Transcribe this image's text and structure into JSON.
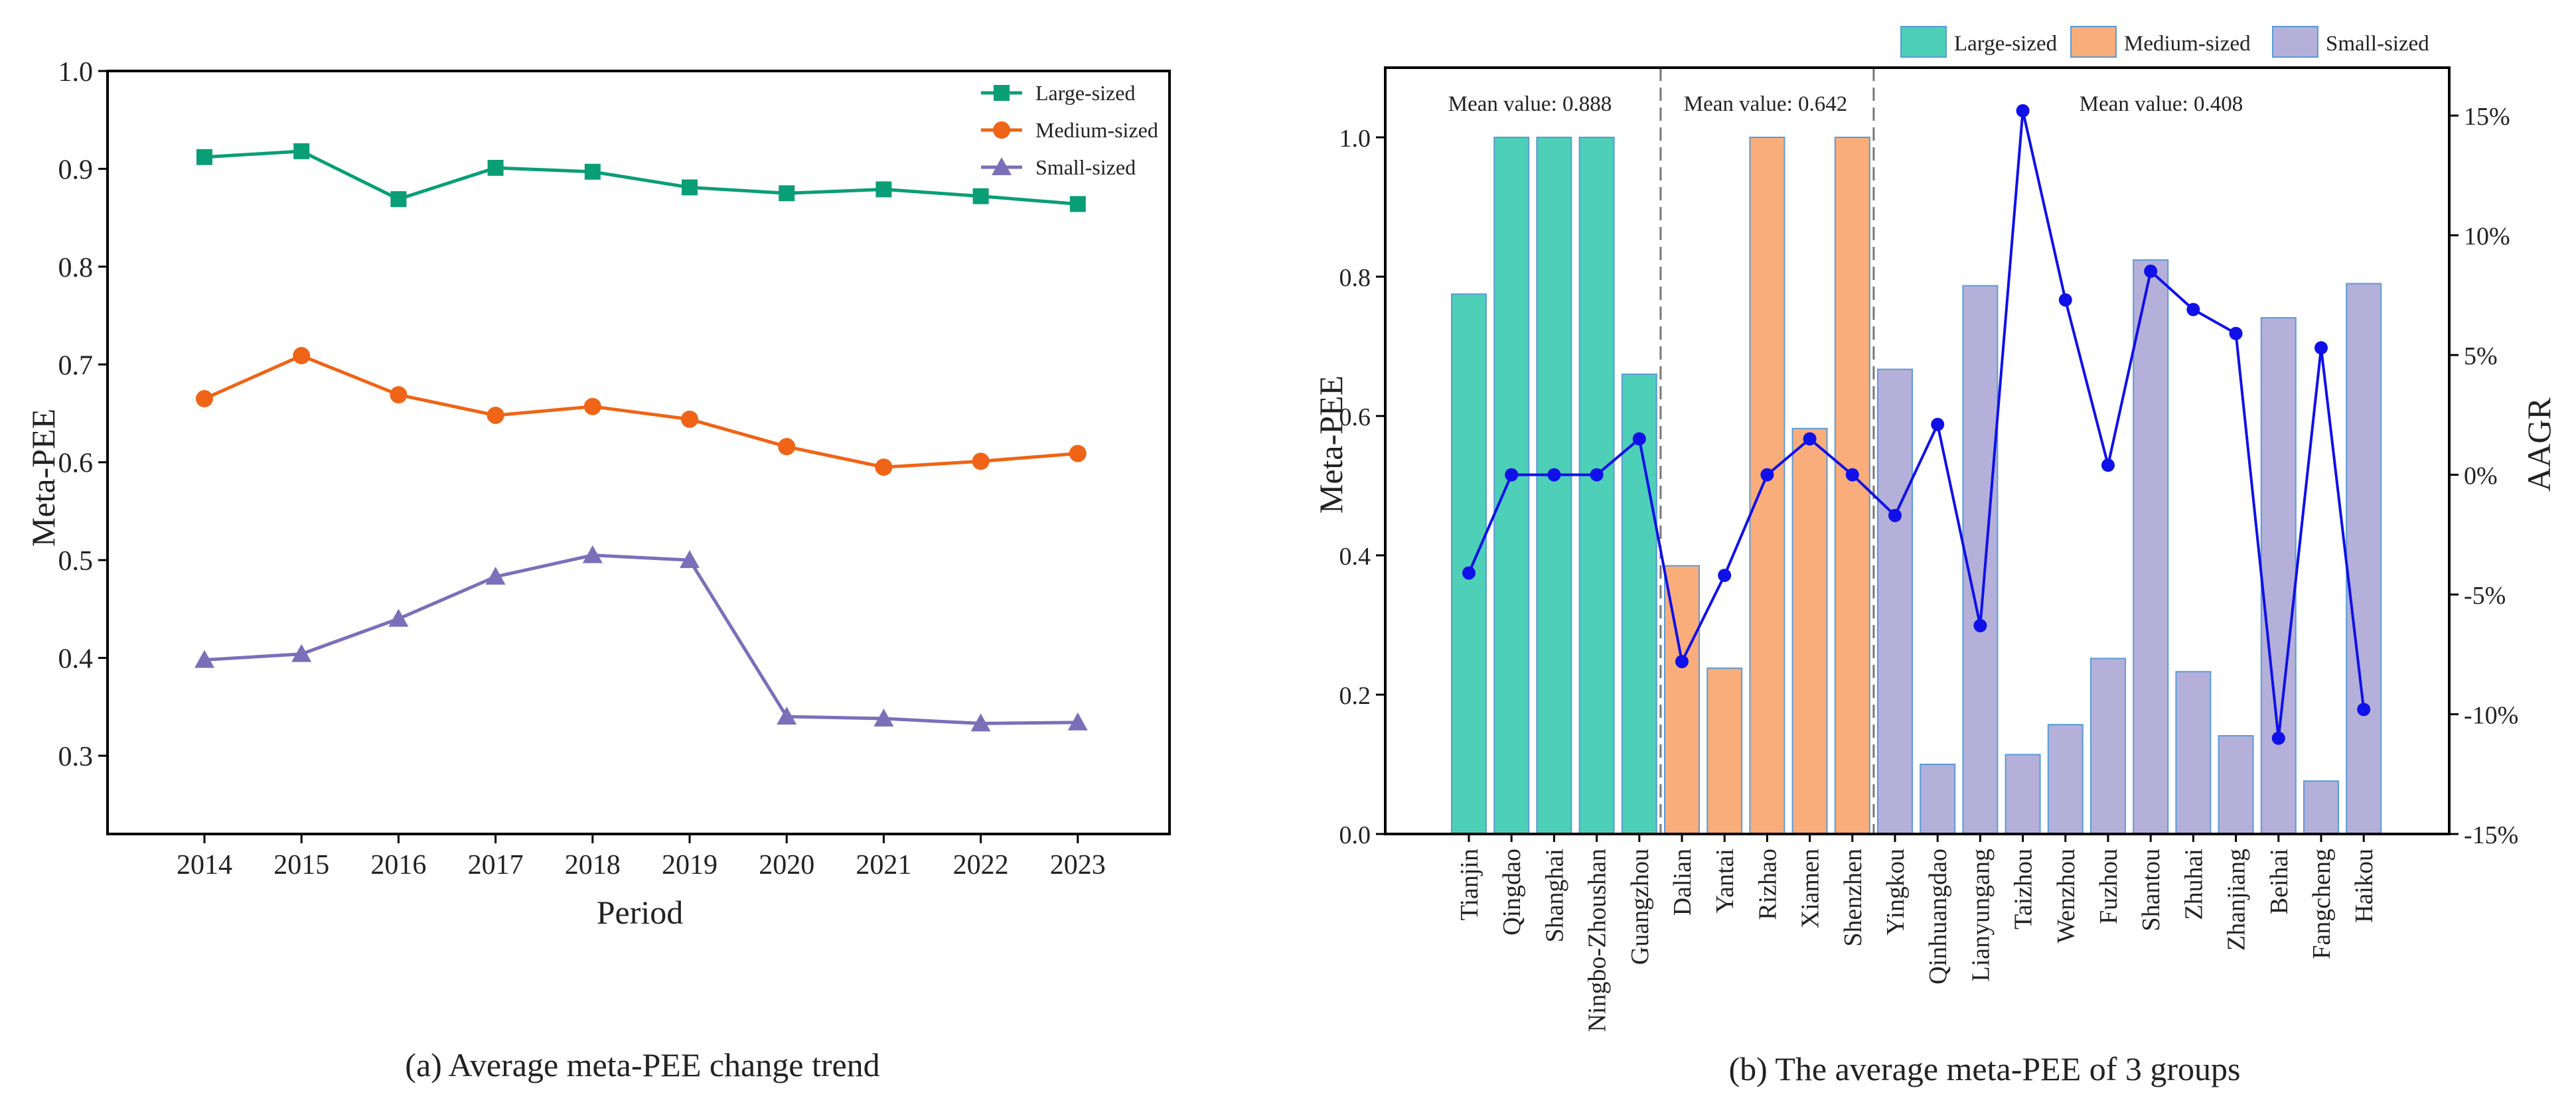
{
  "colors": {
    "large": "#0a9e76",
    "large_bar": "#4ecfb7",
    "medium": "#ef6416",
    "medium_bar": "#f8ad7b",
    "small": "#7b6fba",
    "small_bar": "#b4b0d9",
    "bar_edge": "#5b9bd5",
    "aagr": "#1010e8",
    "axis": "#000000",
    "divider": "#777777"
  },
  "chart_data": [
    {
      "type": "line",
      "title": "",
      "caption": "(a) Average meta-PEE change trend",
      "xlabel": "Period",
      "ylabel": "Meta-PEE",
      "x": [
        "2014",
        "2015",
        "2016",
        "2017",
        "2018",
        "2019",
        "2020",
        "2021",
        "2022",
        "2023"
      ],
      "ylim": [
        0.22,
        1.0
      ],
      "yticks": [
        "0.3",
        "0.4",
        "0.5",
        "0.6",
        "0.7",
        "0.8",
        "0.9",
        "1.0"
      ],
      "legend_position": "top-right",
      "series": [
        {
          "name": "Large-sized",
          "marker": "square",
          "values": [
            0.912,
            0.918,
            0.869,
            0.901,
            0.897,
            0.881,
            0.875,
            0.879,
            0.872,
            0.864
          ]
        },
        {
          "name": "Medium-sized",
          "marker": "circle",
          "values": [
            0.665,
            0.709,
            0.669,
            0.648,
            0.657,
            0.644,
            0.616,
            0.595,
            0.601,
            0.609
          ]
        },
        {
          "name": "Small-sized",
          "marker": "triangle",
          "values": [
            0.398,
            0.404,
            0.44,
            0.483,
            0.505,
            0.5,
            0.34,
            0.338,
            0.333,
            0.334
          ]
        }
      ]
    },
    {
      "type": "bar",
      "title": "",
      "caption": "(b) The average meta-PEE of 3 groups",
      "xlabel": "",
      "ylabel": "Meta-PEE",
      "y2label": "AAGR",
      "ylim": [
        0.0,
        1.1
      ],
      "yticks": [
        "0.0",
        "0.2",
        "0.4",
        "0.6",
        "0.8",
        "1.0"
      ],
      "y2lim": [
        -15,
        17
      ],
      "y2ticks": [
        "-15%",
        "-10%",
        "-5%",
        "0%",
        "5%",
        "10%",
        "15%"
      ],
      "legend": [
        "Large-sized",
        "Medium-sized",
        "Small-sized"
      ],
      "legend_position": "top",
      "categories": [
        "Tianjin",
        "Qingdao",
        "Shanghai",
        "Ningbo-Zhoushan",
        "Guangzhou",
        "Dalian",
        "Yantai",
        "Rizhao",
        "Xiamen",
        "Shenzhen",
        "Yingkou",
        "Qinhuangdao",
        "Lianyungang",
        "Taizhou",
        "Wenzhou",
        "Fuzhou",
        "Shantou",
        "Zhuhai",
        "Zhanjiang",
        "Beihai",
        "Fangcheng",
        "Haikou"
      ],
      "groups": [
        "large",
        "large",
        "large",
        "large",
        "large",
        "medium",
        "medium",
        "medium",
        "medium",
        "medium",
        "small",
        "small",
        "small",
        "small",
        "small",
        "small",
        "small",
        "small",
        "small",
        "small",
        "small",
        "small"
      ],
      "values": [
        0.775,
        1.0,
        1.0,
        1.0,
        0.66,
        0.385,
        0.238,
        1.0,
        0.582,
        1.0,
        0.667,
        0.1,
        0.787,
        0.114,
        0.157,
        0.252,
        0.824,
        0.233,
        0.141,
        0.741,
        0.076,
        0.79
      ],
      "aagr_series": {
        "name": "AAGR",
        "values": [
          -4.1,
          0.0,
          0.0,
          0.0,
          1.5,
          -7.8,
          -4.2,
          0.0,
          1.5,
          0.0,
          -1.7,
          2.1,
          -6.3,
          15.2,
          7.3,
          0.4,
          8.5,
          6.9,
          5.9,
          -11.0,
          5.3,
          -9.8
        ]
      },
      "annotations": [
        "Mean value: 0.888",
        "Mean value: 0.642",
        "Mean value: 0.408"
      ]
    }
  ]
}
